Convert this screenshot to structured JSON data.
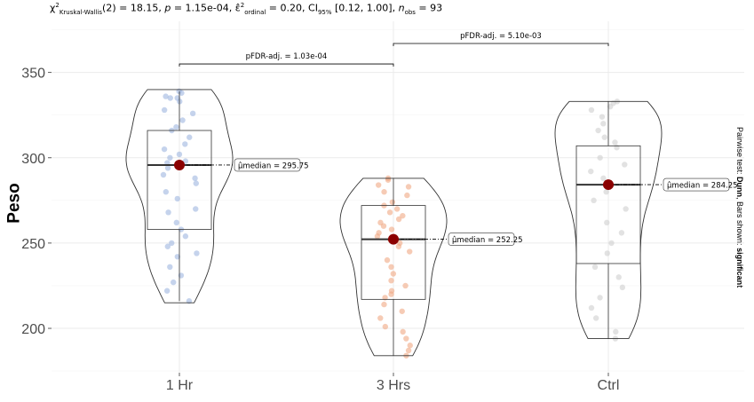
{
  "chart_data": {
    "type": "violin",
    "ylabel": "Peso",
    "xlabel": "",
    "ylim": [
      174,
      380
    ],
    "yticks": [
      200,
      250,
      300,
      350
    ],
    "categories": [
      "1 Hr",
      "3 Hrs",
      "Ctrl"
    ],
    "subtitle_parts": {
      "stat": "18.15",
      "p": "1.15e-04",
      "effsize": "0.20",
      "ci": "[0.12, 1.00]",
      "n": "93"
    },
    "groups": [
      {
        "name": "1 Hr",
        "color": "#9fb6e0",
        "median": 295.75,
        "median_label": "295.75",
        "q1": 258,
        "q3": 316,
        "min": 216,
        "max": 339,
        "violin_min": 215,
        "violin_max": 340,
        "points": [
          339,
          338,
          336,
          335,
          335,
          333,
          328,
          326,
          322,
          318,
          316,
          312,
          308,
          305,
          302,
          300,
          298,
          297,
          296,
          295,
          294,
          290,
          288,
          285,
          280,
          276,
          270,
          268,
          262,
          258,
          254,
          250,
          248,
          244,
          242,
          236,
          231,
          227,
          222,
          216
        ]
      },
      {
        "name": "3 Hrs",
        "color": "#f0a884",
        "median": 252.25,
        "median_label": "252.25",
        "q1": 217,
        "q3": 272,
        "min": 184,
        "max": 288,
        "violin_min": 184,
        "violin_max": 288,
        "points": [
          288,
          287,
          284,
          283,
          280,
          278,
          274,
          272,
          270,
          268,
          266,
          264,
          262,
          260,
          258,
          256,
          254,
          252,
          250,
          248,
          245,
          240,
          236,
          232,
          228,
          225,
          222,
          220,
          218,
          214,
          210,
          206,
          201,
          198,
          194,
          190,
          187,
          184
        ]
      },
      {
        "name": "Ctrl",
        "color": "#cfcfcf",
        "median": 284.25,
        "median_label": "284.25",
        "q1": 238,
        "q3": 307,
        "min": 194,
        "max": 333,
        "violin_min": 194,
        "violin_max": 333,
        "points": [
          333,
          332,
          330,
          328,
          324,
          320,
          316,
          312,
          309,
          306,
          300,
          296,
          292,
          288,
          284,
          280,
          275,
          270,
          262,
          256,
          250,
          244,
          236,
          230,
          224,
          218,
          212,
          206,
          198,
          194
        ]
      }
    ],
    "comparisons": [
      {
        "from": "1 Hr",
        "to": "3 Hrs",
        "p_label": "1.03e-04",
        "y": 355
      },
      {
        "from": "3 Hrs",
        "to": "Ctrl",
        "p_label": "5.10e-03",
        "y": 367
      }
    ],
    "caption": {
      "prefix": "Pairwise test: ",
      "test": "Dunn",
      "middle": ", Bars shown: ",
      "bars": "significant"
    }
  }
}
